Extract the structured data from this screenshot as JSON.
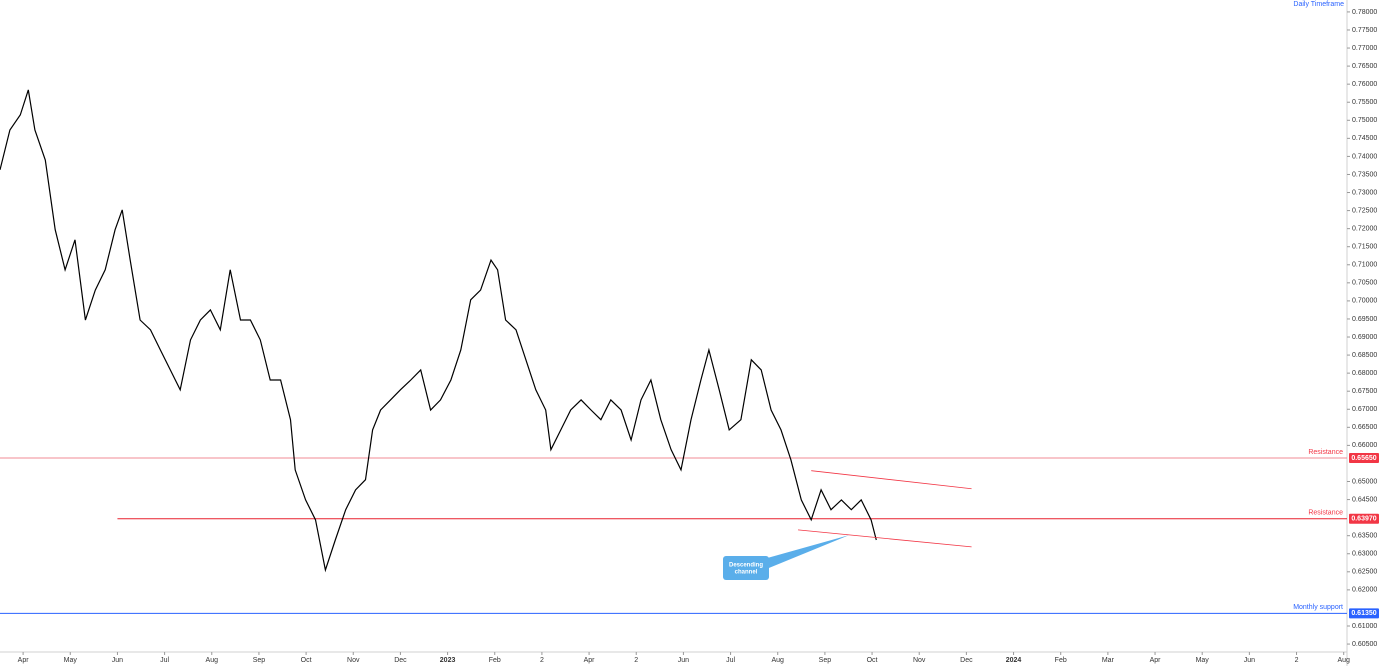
{
  "chart_data": {
    "type": "line",
    "title": "Daily Timeframe",
    "series": [
      {
        "name": null,
        "color": "#000000",
        "x": [
          -0.49,
          -0.28,
          -0.06,
          0.11,
          0.25,
          0.47,
          0.68,
          0.89,
          1.1,
          1.32,
          1.53,
          1.74,
          1.95,
          2.1,
          2.27,
          2.48,
          2.7,
          2.91,
          3.12,
          3.33,
          3.55,
          3.76,
          3.97,
          4.18,
          4.39,
          4.61,
          4.82,
          5.03,
          5.24,
          5.46,
          5.67,
          5.77,
          5.99,
          6.2,
          6.41,
          6.62,
          6.84,
          7.05,
          7.26,
          7.41,
          7.58,
          7.79,
          8.0,
          8.22,
          8.43,
          8.64,
          8.85,
          9.07,
          9.28,
          9.49,
          9.7,
          9.92,
          10.06,
          10.23,
          10.45,
          10.66,
          10.87,
          11.08,
          11.19,
          11.4,
          11.61,
          11.83,
          12.04,
          12.25,
          12.46,
          12.68,
          12.89,
          13.1,
          13.31,
          13.52,
          13.74,
          13.95,
          14.16,
          14.37,
          14.54,
          14.76,
          14.97,
          15.22,
          15.44,
          15.65,
          15.86,
          16.07,
          16.28,
          16.5,
          16.71,
          16.92,
          17.13,
          17.35,
          17.56,
          17.77,
          17.98,
          18.09
        ],
        "values": [
          0.7363,
          0.7473,
          0.7515,
          0.7584,
          0.7473,
          0.739,
          0.7197,
          0.7086,
          0.7169,
          0.6947,
          0.703,
          0.7086,
          0.7197,
          0.7252,
          0.7113,
          0.6947,
          0.692,
          0.6864,
          0.6809,
          0.6754,
          0.6892,
          0.6947,
          0.6975,
          0.692,
          0.7086,
          0.6947,
          0.6947,
          0.6892,
          0.6781,
          0.6781,
          0.6671,
          0.6532,
          0.6449,
          0.6394,
          0.6255,
          0.6338,
          0.6422,
          0.6477,
          0.6505,
          0.6643,
          0.6698,
          0.6726,
          0.6754,
          0.6781,
          0.6809,
          0.6698,
          0.6726,
          0.6781,
          0.6864,
          0.7003,
          0.703,
          0.7113,
          0.7086,
          0.6947,
          0.692,
          0.6837,
          0.6754,
          0.6698,
          0.6588,
          0.6643,
          0.6698,
          0.6726,
          0.6698,
          0.6671,
          0.6726,
          0.6698,
          0.6615,
          0.6726,
          0.6781,
          0.6671,
          0.6588,
          0.6532,
          0.6671,
          0.6781,
          0.6864,
          0.6754,
          0.6643,
          0.6671,
          0.6837,
          0.6809,
          0.6698,
          0.6643,
          0.656,
          0.6449,
          0.6394,
          0.6477,
          0.6422,
          0.6449,
          0.6422,
          0.6449,
          0.6394,
          0.6338
        ]
      }
    ],
    "xlim": [
      -0.49,
      28.07
    ],
    "ylim": [
      0.6028,
      0.7833
    ],
    "log_scale": false,
    "grid": false,
    "xticks": [
      {
        "value": 0,
        "label": "Apr"
      },
      {
        "value": 1,
        "label": "May"
      },
      {
        "value": 2,
        "label": "Jun"
      },
      {
        "value": 3,
        "label": "Jul"
      },
      {
        "value": 4,
        "label": "Aug"
      },
      {
        "value": 5,
        "label": "Sep"
      },
      {
        "value": 6,
        "label": "Oct"
      },
      {
        "value": 7,
        "label": "Nov"
      },
      {
        "value": 8,
        "label": "Dec"
      },
      {
        "value": 9,
        "label": "2023"
      },
      {
        "value": 10,
        "label": "Feb"
      },
      {
        "value": 11,
        "label": "2"
      },
      {
        "value": 12,
        "label": "Apr"
      },
      {
        "value": 13,
        "label": "2"
      },
      {
        "value": 14,
        "label": "Jun"
      },
      {
        "value": 15,
        "label": "Jul"
      },
      {
        "value": 16,
        "label": "Aug"
      },
      {
        "value": 17,
        "label": "Sep"
      },
      {
        "value": 18,
        "label": "Oct"
      },
      {
        "value": 19,
        "label": "Nov"
      },
      {
        "value": 20,
        "label": "Dec"
      },
      {
        "value": 21,
        "label": "2024"
      },
      {
        "value": 22,
        "label": "Feb"
      },
      {
        "value": 23,
        "label": "Mar"
      },
      {
        "value": 24,
        "label": "Apr"
      },
      {
        "value": 25,
        "label": "May"
      },
      {
        "value": 26,
        "label": "Jun"
      },
      {
        "value": 27,
        "label": "2"
      },
      {
        "value": 28,
        "label": "Aug"
      }
    ],
    "yticks": [
      {
        "value": 0.605,
        "label": "0.60500"
      },
      {
        "value": 0.61,
        "label": "0.61000"
      },
      {
        "value": 0.62,
        "label": "0.62000"
      },
      {
        "value": 0.625,
        "label": "0.62500"
      },
      {
        "value": 0.63,
        "label": "0.63000"
      },
      {
        "value": 0.635,
        "label": "0.63500"
      },
      {
        "value": 0.645,
        "label": "0.64500"
      },
      {
        "value": 0.65,
        "label": "0.65000"
      },
      {
        "value": 0.66,
        "label": "0.66000"
      },
      {
        "value": 0.665,
        "label": "0.66500"
      },
      {
        "value": 0.67,
        "label": "0.67000"
      },
      {
        "value": 0.675,
        "label": "0.67500"
      },
      {
        "value": 0.68,
        "label": "0.68000"
      },
      {
        "value": 0.685,
        "label": "0.68500"
      },
      {
        "value": 0.69,
        "label": "0.69000"
      },
      {
        "value": 0.695,
        "label": "0.69500"
      },
      {
        "value": 0.7,
        "label": "0.70000"
      },
      {
        "value": 0.705,
        "label": "0.70500"
      },
      {
        "value": 0.71,
        "label": "0.71000"
      },
      {
        "value": 0.715,
        "label": "0.71500"
      },
      {
        "value": 0.72,
        "label": "0.72000"
      },
      {
        "value": 0.725,
        "label": "0.72500"
      },
      {
        "value": 0.73,
        "label": "0.73000"
      },
      {
        "value": 0.735,
        "label": "0.73500"
      },
      {
        "value": 0.74,
        "label": "0.74000"
      },
      {
        "value": 0.745,
        "label": "0.74500"
      },
      {
        "value": 0.75,
        "label": "0.75000"
      },
      {
        "value": 0.755,
        "label": "0.75500"
      },
      {
        "value": 0.76,
        "label": "0.76000"
      },
      {
        "value": 0.765,
        "label": "0.76500"
      },
      {
        "value": 0.77,
        "label": "0.77000"
      },
      {
        "value": 0.775,
        "label": "0.77500"
      },
      {
        "value": 0.78,
        "label": "0.78000"
      }
    ],
    "levels": [
      {
        "text": "Resistance",
        "value": 0.6565,
        "label": "0.65650",
        "color": "#f28b95",
        "tag_color": "#f23645",
        "x_start": -0.49
      },
      {
        "text": "Resistance",
        "value": 0.6397,
        "label": "0.63970",
        "color": "#e8202f",
        "tag_color": "#f23645",
        "x_start": 2.0
      },
      {
        "text": "Monthly support",
        "value": 0.6135,
        "label": "0.61350",
        "color": "#2962ff",
        "tag_color": "#2962ff",
        "x_start": -0.49
      }
    ],
    "channel": {
      "color": "#f23645",
      "upper": {
        "x": [
          16.71,
          20.11
        ],
        "values": [
          0.653,
          0.648
        ]
      },
      "lower": {
        "x": [
          16.43,
          20.11
        ],
        "values": [
          0.6366,
          0.6319
        ]
      }
    },
    "callout": {
      "text": "Descending channel",
      "x": 17.52,
      "value": 0.6352,
      "color": "#5aaeea"
    }
  }
}
